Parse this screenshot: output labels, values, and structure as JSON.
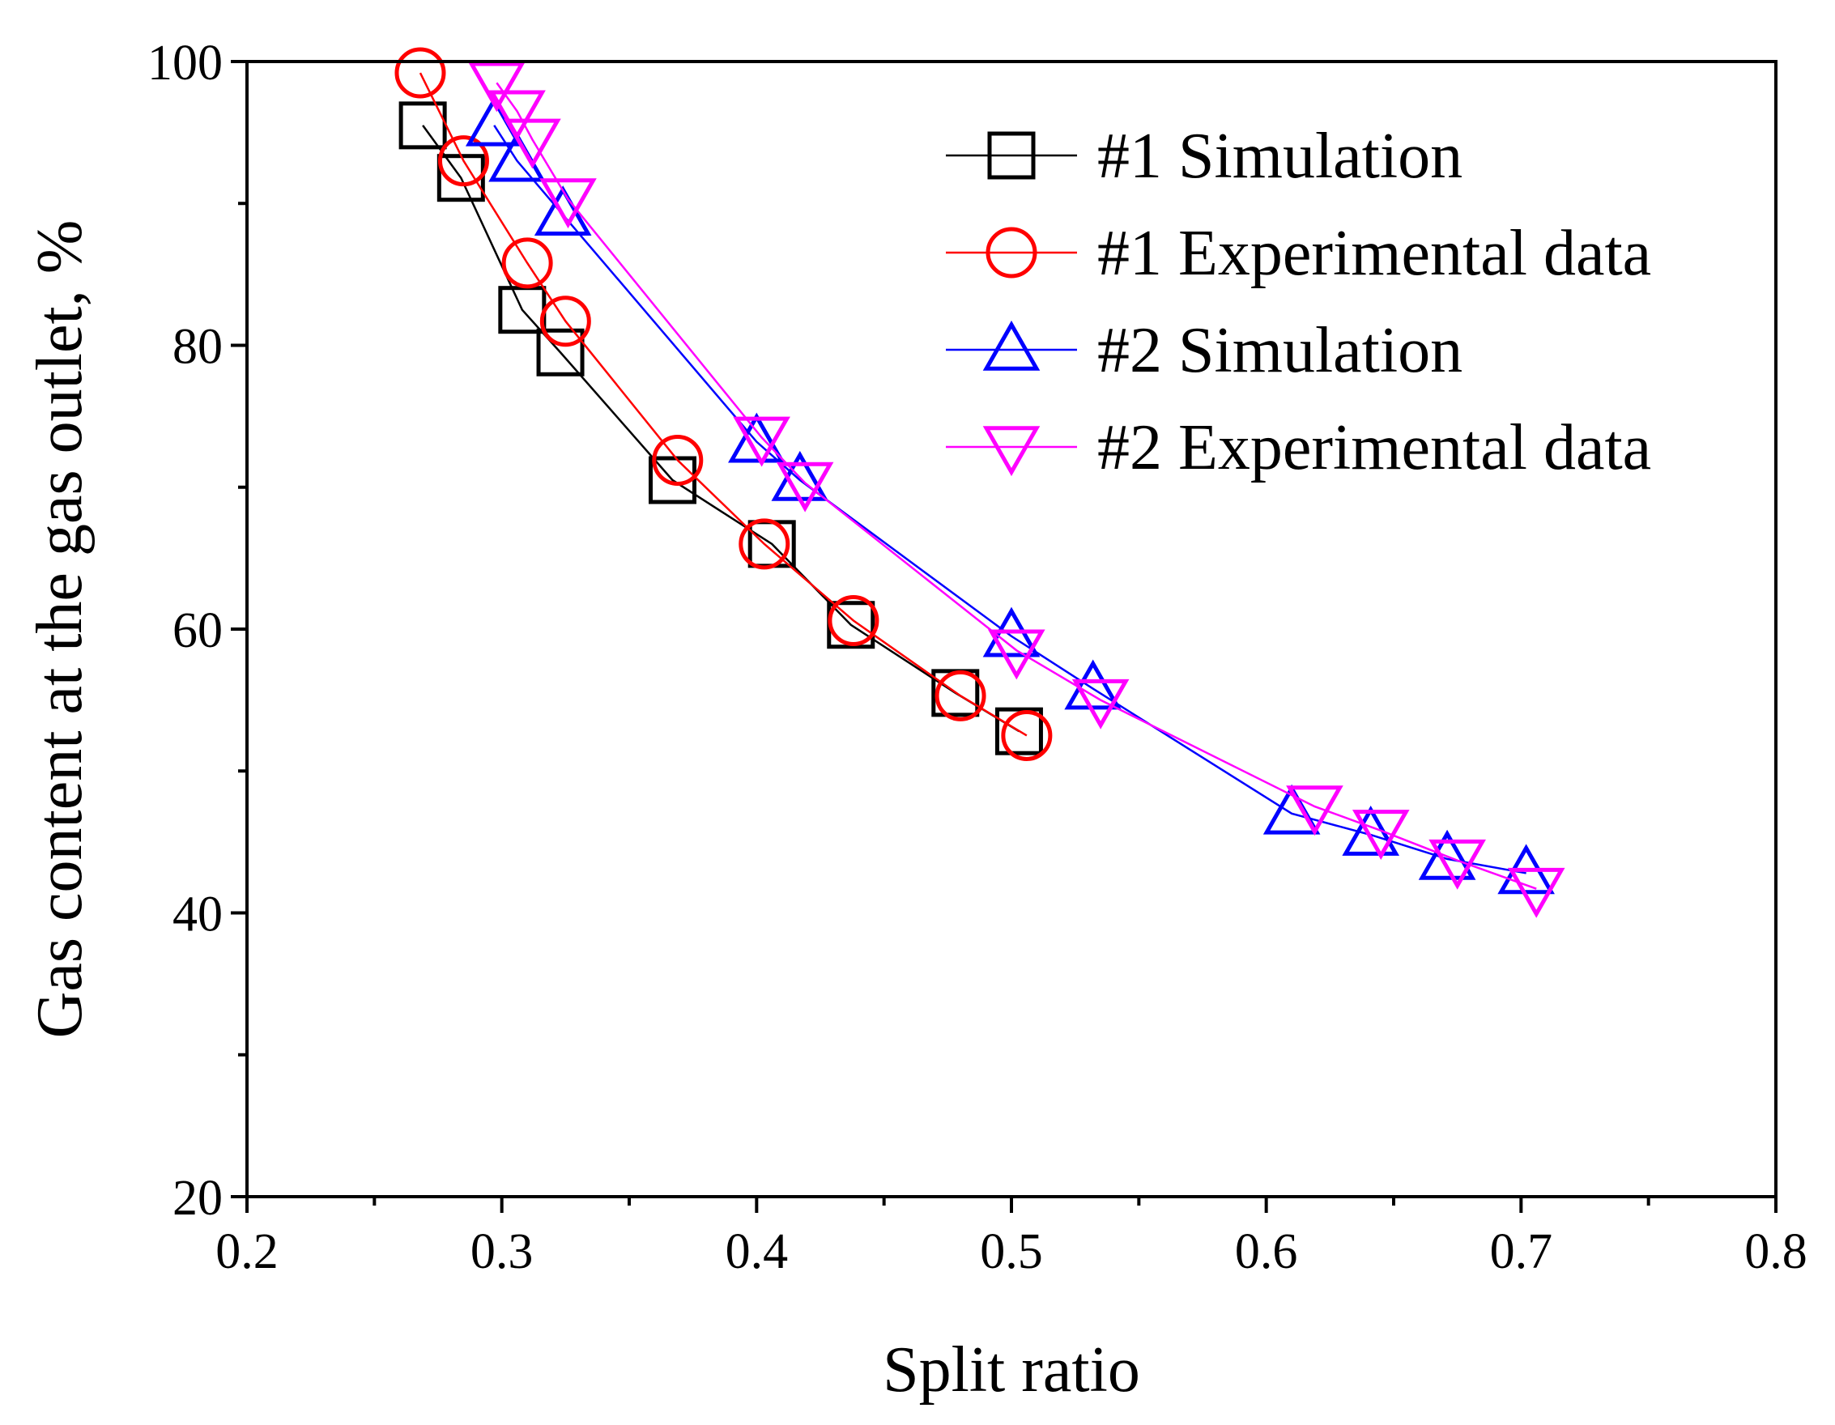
{
  "chart_data": {
    "type": "line",
    "xlabel": "Split ratio",
    "ylabel": "Gas content at the gas outlet, %",
    "xlim": [
      0.2,
      0.8
    ],
    "ylim": [
      20,
      100
    ],
    "xticks": [
      "0.2",
      "0.3",
      "0.4",
      "0.5",
      "0.6",
      "0.7",
      "0.8"
    ],
    "yticks": [
      "20",
      "40",
      "60",
      "80",
      "100"
    ],
    "grid": false,
    "legend_position": "top-right",
    "series": [
      {
        "name": "#1 Simulation",
        "marker": "square",
        "color": "#000000",
        "points": [
          [
            0.269,
            95.5
          ],
          [
            0.284,
            91.8
          ],
          [
            0.308,
            82.5
          ],
          [
            0.323,
            79.5
          ],
          [
            0.367,
            70.5
          ],
          [
            0.406,
            66.0
          ],
          [
            0.437,
            60.3
          ],
          [
            0.478,
            55.5
          ],
          [
            0.503,
            52.8
          ]
        ]
      },
      {
        "name": "#1 Experimental data",
        "marker": "circle",
        "color": "#ff0000",
        "points": [
          [
            0.268,
            99.2
          ],
          [
            0.285,
            93.0
          ],
          [
            0.31,
            85.8
          ],
          [
            0.325,
            81.7
          ],
          [
            0.369,
            71.9
          ],
          [
            0.403,
            66.0
          ],
          [
            0.438,
            60.6
          ],
          [
            0.48,
            55.3
          ],
          [
            0.506,
            52.5
          ]
        ]
      },
      {
        "name": "#2 Simulation",
        "marker": "triangle-up",
        "color": "#0000ff",
        "points": [
          [
            0.297,
            95.5
          ],
          [
            0.306,
            93.0
          ],
          [
            0.324,
            89.2
          ],
          [
            0.4,
            73.2
          ],
          [
            0.417,
            70.5
          ],
          [
            0.5,
            59.5
          ],
          [
            0.532,
            55.8
          ],
          [
            0.61,
            47.0
          ],
          [
            0.641,
            45.5
          ],
          [
            0.671,
            43.8
          ],
          [
            0.702,
            42.8
          ]
        ]
      },
      {
        "name": "#2 Experimental data",
        "marker": "triangle-down",
        "color": "#ff00ff",
        "points": [
          [
            0.298,
            98.5
          ],
          [
            0.306,
            96.5
          ],
          [
            0.312,
            94.5
          ],
          [
            0.326,
            90.3
          ],
          [
            0.402,
            73.5
          ],
          [
            0.419,
            70.3
          ],
          [
            0.502,
            58.5
          ],
          [
            0.535,
            55.0
          ],
          [
            0.619,
            47.5
          ],
          [
            0.645,
            45.8
          ],
          [
            0.675,
            43.7
          ],
          [
            0.706,
            41.7
          ]
        ]
      }
    ]
  }
}
